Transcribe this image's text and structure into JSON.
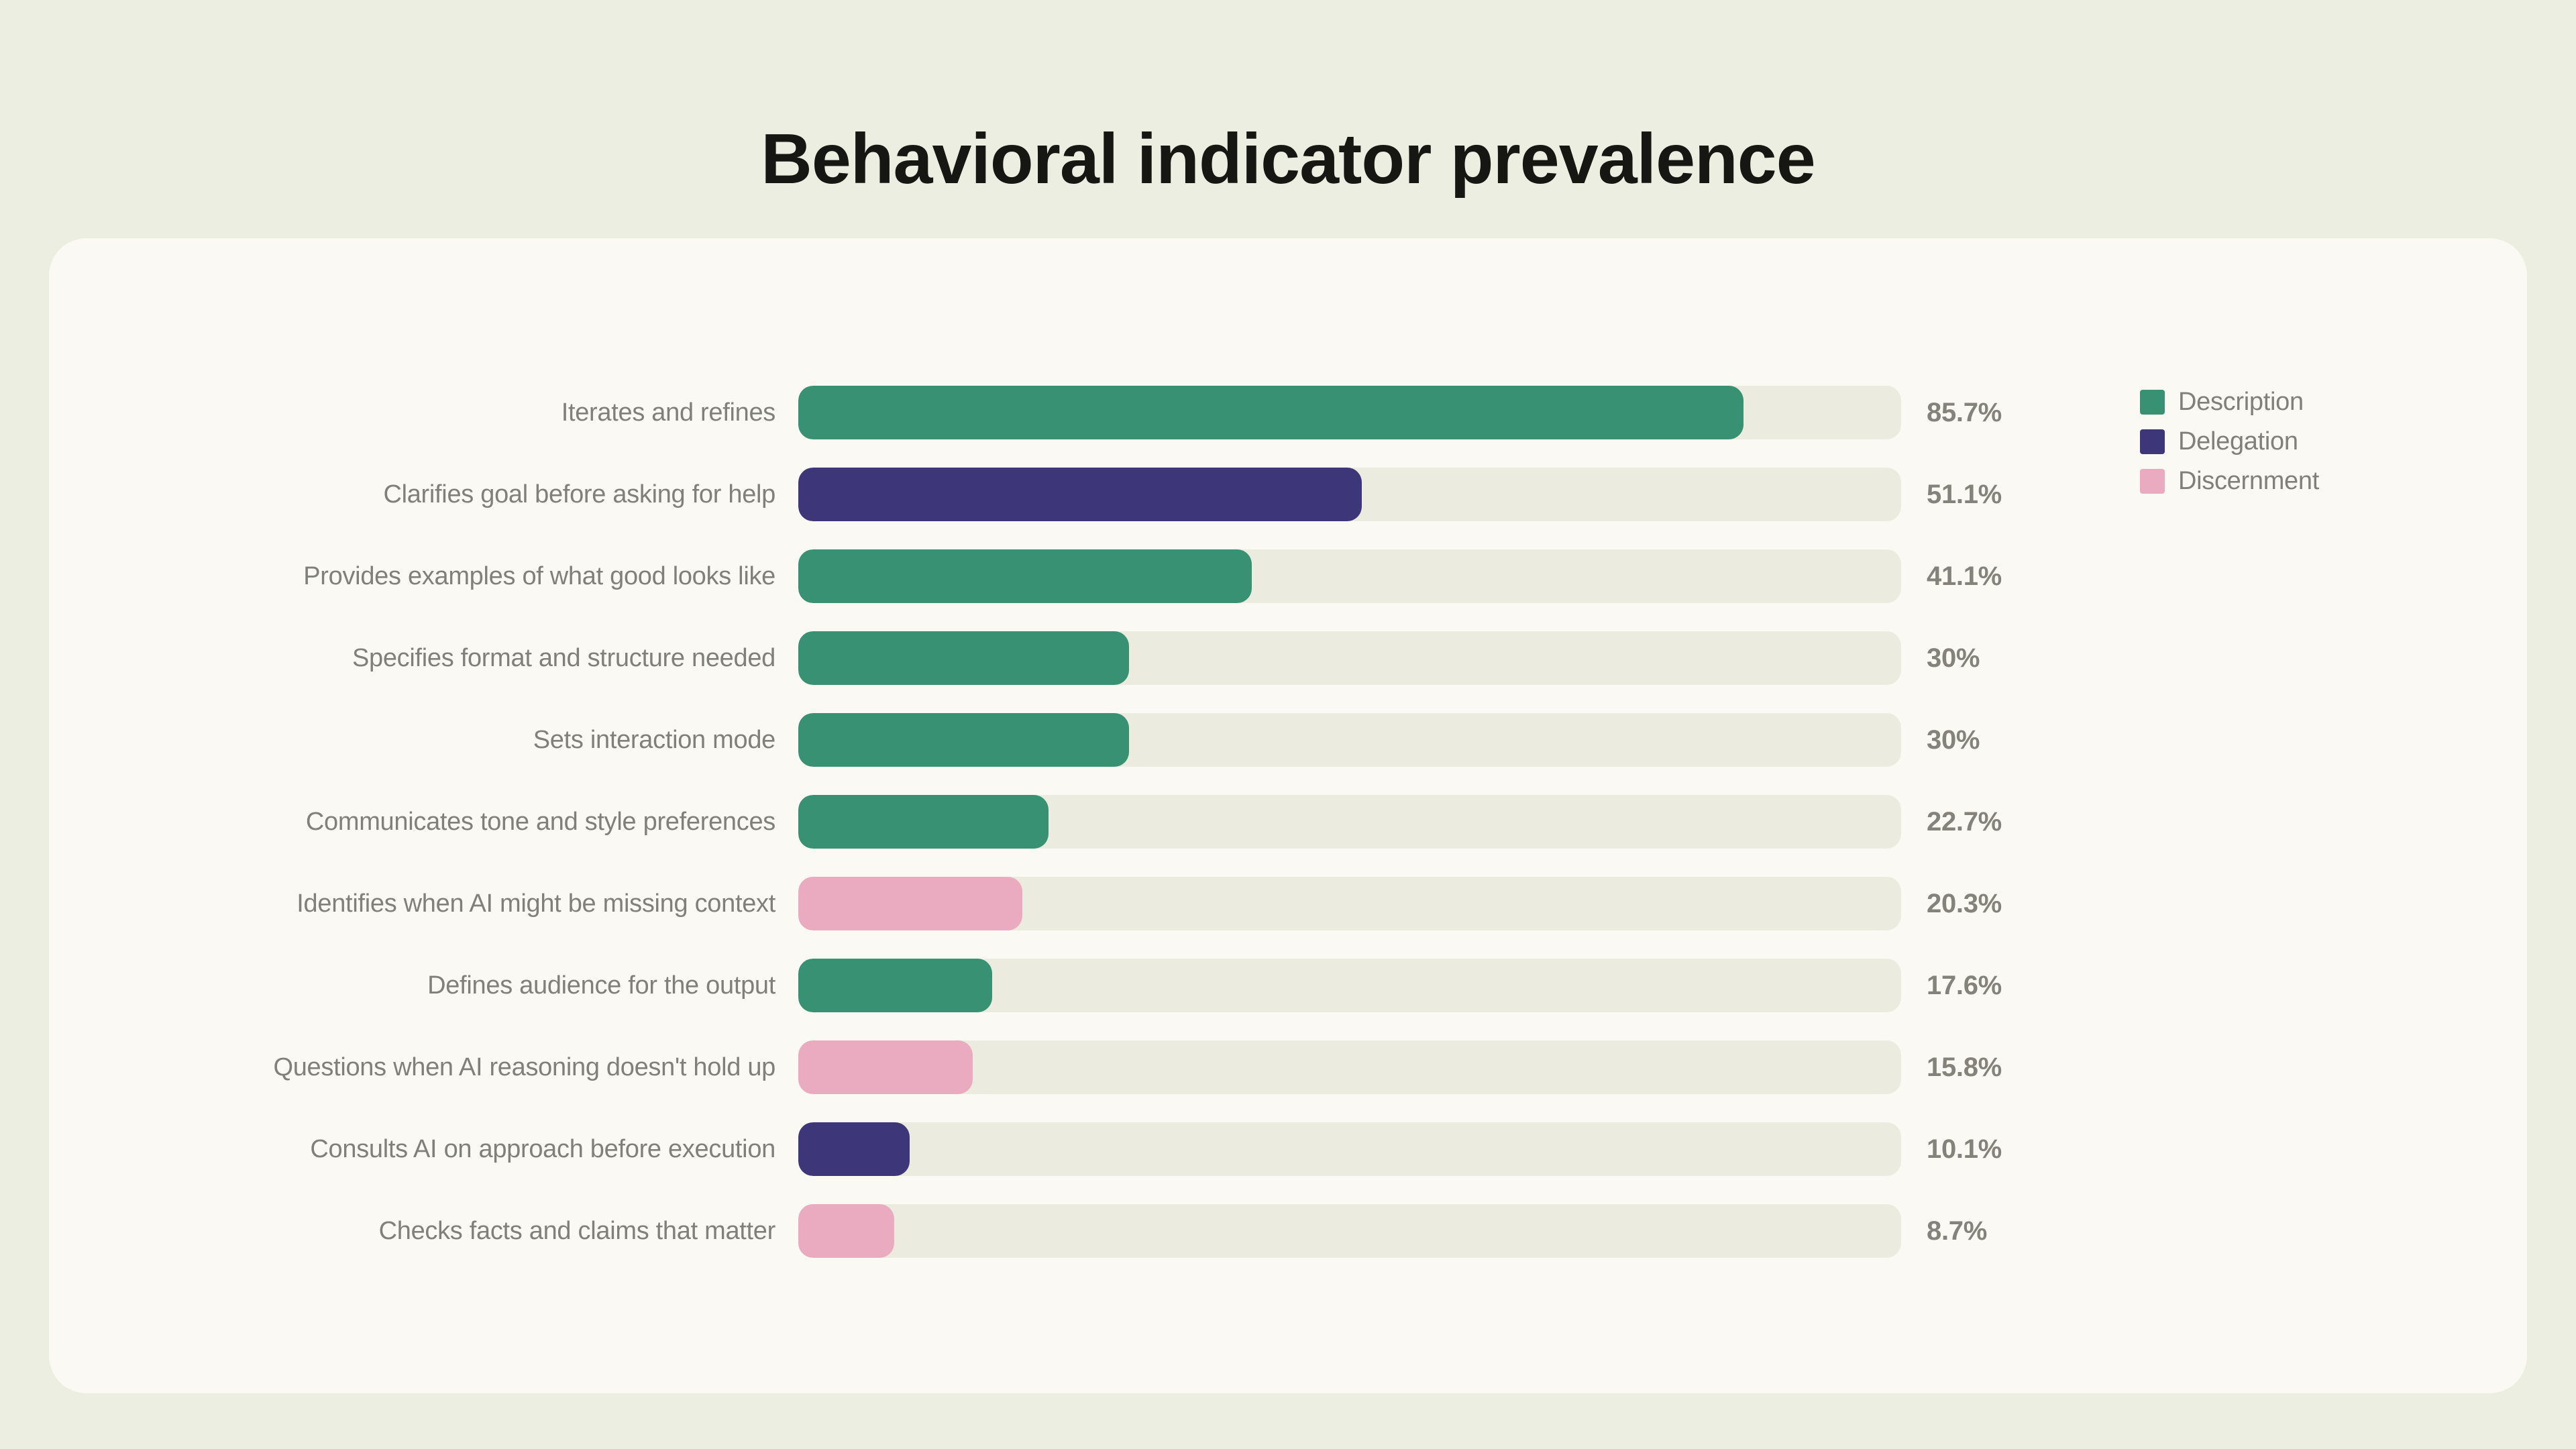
{
  "title": "Behavioral indicator prevalence",
  "colors": {
    "page_bg": "#edeee2",
    "card_bg": "#faf9f3",
    "track": "#ecebdf",
    "title_text": "#161613",
    "label_text": "#817f79",
    "value_text": "#85827b",
    "series": {
      "Description": "#389173",
      "Delegation": "#3d3679",
      "Discernment": "#eaaabf"
    }
  },
  "legend": {
    "position": "top-right",
    "entries": [
      {
        "label": "Description",
        "color": "#389173"
      },
      {
        "label": "Delegation",
        "color": "#3d3679"
      },
      {
        "label": "Discernment",
        "color": "#eaaabf"
      }
    ]
  },
  "chart_data": {
    "type": "bar",
    "orientation": "horizontal",
    "title": "Behavioral indicator prevalence",
    "xlim": [
      0,
      100
    ],
    "grid": false,
    "categories": [
      "Iterates and refines",
      "Clarifies goal before asking for help",
      "Provides examples of what good looks like",
      "Specifies format and structure needed",
      "Sets interaction mode",
      "Communicates tone and style preferences",
      "Identifies when AI might be missing context",
      "Defines audience for the output",
      "Questions when AI reasoning doesn't hold up",
      "Consults AI on approach before execution",
      "Checks facts and claims that matter"
    ],
    "values": [
      85.7,
      51.1,
      41.1,
      30,
      30,
      22.7,
      20.3,
      17.6,
      15.8,
      10.1,
      8.7
    ],
    "value_labels": [
      "85.7%",
      "51.1%",
      "41.1%",
      "30%",
      "30%",
      "22.7%",
      "20.3%",
      "17.6%",
      "15.8%",
      "10.1%",
      "8.7%"
    ],
    "groups": [
      "Description",
      "Delegation",
      "Description",
      "Description",
      "Description",
      "Description",
      "Discernment",
      "Description",
      "Discernment",
      "Delegation",
      "Discernment"
    ]
  }
}
